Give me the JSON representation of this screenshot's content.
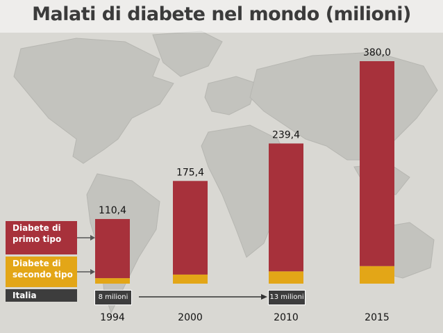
{
  "header": {
    "title": "Malati di diabete nel mondo (milioni)"
  },
  "colors": {
    "type1": "#a7313b",
    "type2": "#e3a617",
    "italia": "#3d3d3d",
    "arrow": "#555555"
  },
  "legend": {
    "type1_line1": "Diabete di",
    "type1_line2": "primo tipo",
    "type2_line1": "Diabete di",
    "type2_line2": "secondo tipo",
    "italia": "Italia"
  },
  "italia_badges": {
    "y1994": "8 milioni",
    "y2010": "13 milioni"
  },
  "chart_data": {
    "type": "bar",
    "stacked": true,
    "categories": [
      "1994",
      "2000",
      "2010",
      "2015"
    ],
    "totals": [
      110.4,
      175.4,
      239.4,
      380.0
    ],
    "total_labels": [
      "110,4",
      "175,4",
      "239,4",
      "380,0"
    ],
    "series": [
      {
        "name": "Diabete di secondo tipo",
        "values": [
          9.4,
          15.5,
          21.0,
          30.0
        ]
      },
      {
        "name": "Diabete di primo tipo",
        "values": [
          101.0,
          159.9,
          218.4,
          350.0
        ]
      }
    ],
    "italia_values": [
      8,
      null,
      13,
      null
    ],
    "ylim": [
      0,
      380
    ]
  }
}
